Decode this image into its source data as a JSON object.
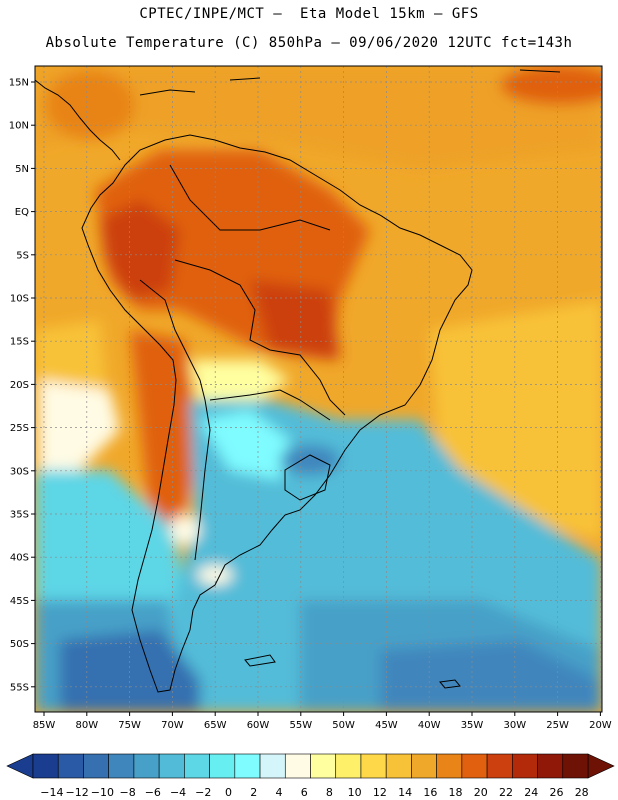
{
  "header": {
    "line1": "CPTEC/INPE/MCT –  Eta Model 15km – GFS",
    "line2": "Absolute Temperature (C) 850hPa – 09/06/2020 12UTC fct=143h"
  },
  "map": {
    "lon_labels": [
      "85W",
      "80W",
      "75W",
      "70W",
      "65W",
      "60W",
      "55W",
      "50W",
      "45W",
      "40W",
      "35W",
      "30W",
      "25W",
      "20W"
    ],
    "lat_labels": [
      "15N",
      "10N",
      "5N",
      "EQ",
      "5S",
      "10S",
      "15S",
      "20S",
      "25S",
      "30S",
      "35S",
      "40S",
      "45S",
      "50S",
      "55S"
    ]
  },
  "colorbar": {
    "labels": [
      "-14",
      "-12",
      "-10",
      "-8",
      "-6",
      "-4",
      "-2",
      "0",
      "2",
      "4",
      "6",
      "8",
      "10",
      "12",
      "14",
      "16",
      "18",
      "20",
      "22",
      "24",
      "26",
      "28"
    ],
    "colors": [
      "#1a3d8f",
      "#2a5aa5",
      "#3670b0",
      "#3f86bd",
      "#47a0c8",
      "#52bcd8",
      "#5dd6e6",
      "#66eef0",
      "#7ffcff",
      "#d4f6fb",
      "#fffbe4",
      "#ffffa0",
      "#fff06a",
      "#ffd84a",
      "#f8c238",
      "#f0a82a",
      "#e88418",
      "#e06010",
      "#cc4010",
      "#b22a0a",
      "#901808",
      "#6e1206"
    ]
  },
  "colors": {
    "land_outline": "#000000",
    "grid": "#8a8a8a"
  }
}
